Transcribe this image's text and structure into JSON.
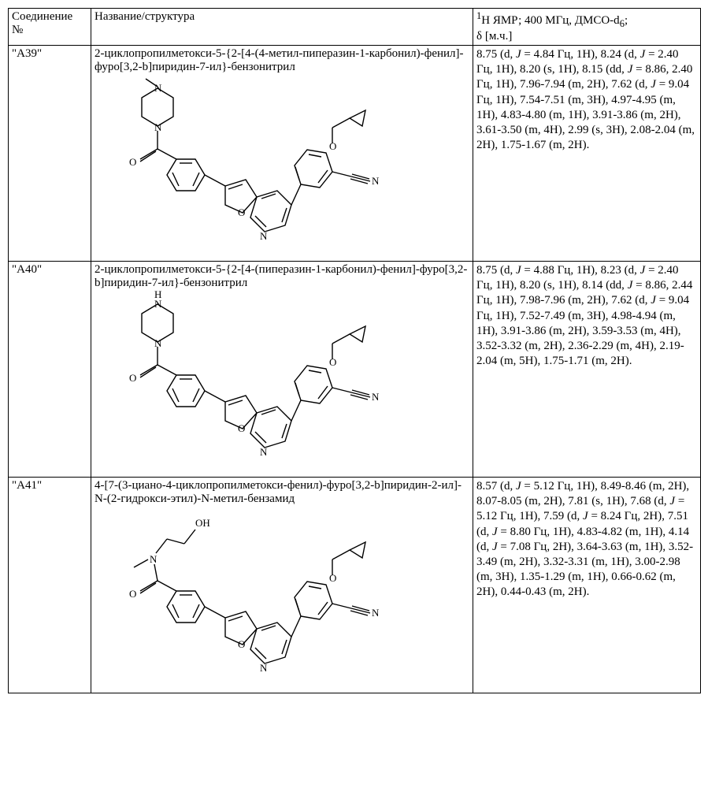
{
  "header": {
    "col1_line1": "Соединение",
    "col1_line2": "№",
    "col2": "Название/структура",
    "col3_prefix_sup": "1",
    "col3_line1_rest": "Н ЯМР; 400 МГц, ДМСО-d",
    "col3_sub": "6",
    "col3_semicolon": ";",
    "col3_line2": "δ [м.ч.]"
  },
  "rows": [
    {
      "id": "\"A39\"",
      "name": "2-циклопропилметокси-5-{2-[4-(4-метил-пиперазин-1-карбонил)-фенил]-фуро[3,2-b]пиридин-7-ил}-бензонитрил",
      "nmr_html": "8.75 (d, <i>J</i> = 4.84 Гц, 1H), 8.24 (d, <i>J</i> = 2.40 Гц, 1H), 8.20 (s, 1H), 8.15 (dd, <i>J</i> = 8.86, 2.40 Гц, 1H), 7.96-7.94 (m, 2H), 7.62 (d, <i>J</i> = 9.04 Гц, 1H), 7.54-7.51 (m, 3H), 4.97-4.95 (m, 1H), 4.83-4.80 (m, 1H), 3.91-3.86 (m, 2H), 3.61-3.50 (m, 4H), 2.99 (s, 3H), 2.08-2.04 (m, 2H), 1.75-1.67 (m, 2H).",
      "structure": {
        "stroke": "#000000",
        "stroke_width": 1.4,
        "piperazine_n_sub": "methyl"
      }
    },
    {
      "id": "\"A40\"",
      "name": "2-циклопропилметокси-5-{2-[4-(пиперазин-1-карбонил)-фенил]-фуро[3,2-b]пиридин-7-ил}-бензонитрил",
      "nmr_html": "8.75 (d, <i>J</i> = 4.88 Гц, 1H), 8.23 (d, <i>J</i> = 2.40 Гц, 1H), 8.20 (s, 1H), 8.14 (dd, <i>J</i> = 8.86, 2.44 Гц, 1H), 7.98-7.96 (m, 2H), 7.62 (d, <i>J</i> = 9.04 Гц, 1H), 7.52-7.49 (m, 3H), 4.98-4.94 (m, 1H), 3.91-3.86 (m, 2H), 3.59-3.53 (m, 4H), 3.52-3.32 (m, 2H), 2.36-2.29 (m, 4H), 2.19-2.04 (m, 5H), 1.75-1.71 (m, 2H).",
      "structure": {
        "stroke": "#000000",
        "stroke_width": 1.4,
        "piperazine_n_sub": "H"
      }
    },
    {
      "id": "\"A41\"",
      "name": "4-[7-(3-циано-4-циклопропилметокси-фенил)-фуро[3,2-b]пиридин-2-ил]-N-(2-гидрокси-этил)-N-метил-бензамид",
      "nmr_html": "8.57 (d, <i>J</i> = 5.12 Гц, 1H), 8.49-8.46 (m, 2H), 8.07-8.05 (m, 2H), 7.81 (s, 1H), 7.68 (d, <i>J</i> = 5.12 Гц, 1H), 7.59 (d, <i>J</i> = 8.24 Гц, 2H), 7.51 (d, <i>J</i> = 8.80 Гц, 1H), 4.83-4.82 (m, 1H), 4.14 (d, <i>J</i> = 7.08 Гц, 2H), 3.64-3.63 (m, 1H), 3.52-3.49 (m, 2H), 3.32-3.31 (m, 1H), 3.00-2.98 (m, 3H), 1.35-1.29 (m, 1H), 0.66-0.62 (m, 2H), 0.44-0.43 (m, 2H).",
      "structure": {
        "stroke": "#000000",
        "stroke_width": 1.4,
        "left_group": "hydroxyethyl_methyl_amide"
      }
    }
  ]
}
